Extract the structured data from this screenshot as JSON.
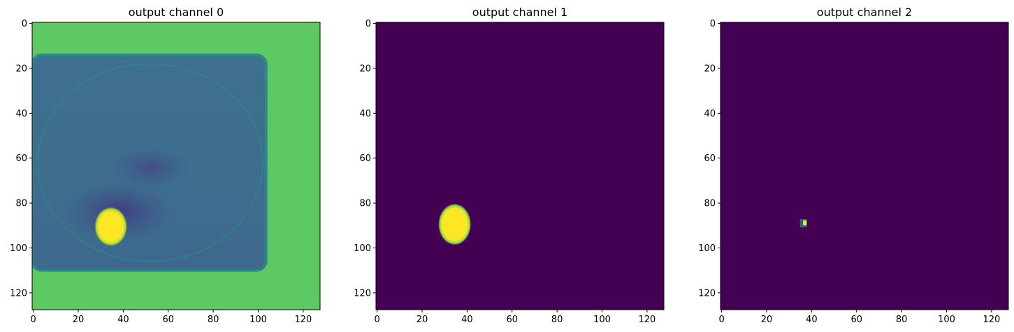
{
  "colors": {
    "viridis_low": "#440154",
    "viridis_mid": "#3b528b",
    "viridis_teal": "#2c728e",
    "viridis_green": "#5ec962",
    "viridis_high": "#fde725"
  },
  "chart_data": [
    {
      "type": "heatmap",
      "title": "output channel 0",
      "xlabel": "",
      "ylabel": "",
      "xlim": [
        0,
        127
      ],
      "ylim": [
        127,
        0
      ],
      "xticks": [
        "0",
        "20",
        "40",
        "60",
        "80",
        "100",
        "120"
      ],
      "yticks": [
        "0",
        "20",
        "40",
        "60",
        "80",
        "100",
        "120"
      ],
      "colormap": "viridis",
      "grid": false
    },
    {
      "type": "heatmap",
      "title": "output channel 1",
      "xlabel": "",
      "ylabel": "",
      "xlim": [
        0,
        127
      ],
      "ylim": [
        127,
        0
      ],
      "xticks": [
        "0",
        "20",
        "40",
        "60",
        "80",
        "100",
        "120"
      ],
      "yticks": [
        "0",
        "20",
        "40",
        "60",
        "80",
        "100",
        "120"
      ],
      "colormap": "viridis",
      "grid": false
    },
    {
      "type": "heatmap",
      "title": "output channel 2",
      "xlabel": "",
      "ylabel": "",
      "xlim": [
        0,
        127
      ],
      "ylim": [
        127,
        0
      ],
      "xticks": [
        "0",
        "20",
        "40",
        "60",
        "80",
        "100",
        "120"
      ],
      "yticks": [
        "0",
        "20",
        "40",
        "60",
        "80",
        "100",
        "120"
      ],
      "colormap": "viridis",
      "grid": false
    }
  ]
}
